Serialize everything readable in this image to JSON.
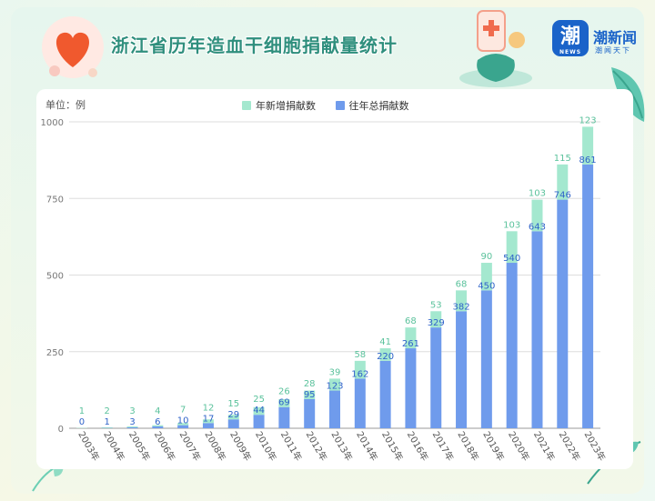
{
  "header": {
    "title": "浙江省历年造血干细胞捐献量统计",
    "brand_name": "潮新闻",
    "brand_tagline": "潮闻天下",
    "brand_mark": "潮",
    "brand_mark_sub": "NEWS",
    "brand_color": "#1a63c9"
  },
  "chart_data": {
    "type": "bar",
    "stacked": true,
    "unit_label": "单位：例",
    "categories": [
      "2003年",
      "2004年",
      "2005年",
      "2006年",
      "2007年",
      "2008年",
      "2009年",
      "2010年",
      "2011年",
      "2012年",
      "2013年",
      "2014年",
      "2015年",
      "2016年",
      "2017年",
      "2018年",
      "2019年",
      "2020年",
      "2021年",
      "2022年",
      "2023年"
    ],
    "series": [
      {
        "name": "往年总捐献数",
        "color": "#6f9bec",
        "label_color": "#2f63c9",
        "values": [
          0,
          1,
          3,
          6,
          10,
          17,
          29,
          44,
          69,
          95,
          123,
          162,
          220,
          261,
          329,
          382,
          450,
          540,
          643,
          746,
          861
        ]
      },
      {
        "name": "年新增捐献数",
        "color": "#a4e8cf",
        "label_color": "#5bc29c",
        "values": [
          1,
          2,
          3,
          4,
          7,
          12,
          15,
          25,
          26,
          28,
          39,
          58,
          41,
          68,
          53,
          68,
          90,
          103,
          103,
          115,
          123
        ]
      }
    ],
    "yticks": [
      0,
      250,
      500,
      750,
      1000
    ],
    "ylim": [
      0,
      1000
    ],
    "grid": true,
    "legend_position": "top-center"
  }
}
